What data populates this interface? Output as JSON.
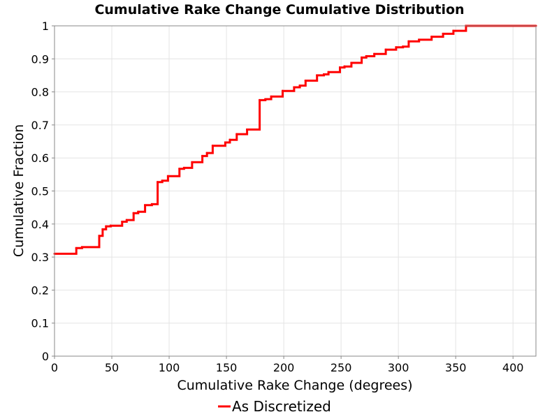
{
  "chart_data": {
    "type": "line",
    "title": "Cumulative Rake Change Cumulative Distribution",
    "xlabel": "Cumulative Rake Change (degrees)",
    "ylabel": "Cumulative Fraction",
    "xlim": [
      0,
      420
    ],
    "ylim": [
      0,
      1
    ],
    "x_ticks": [
      0,
      50,
      100,
      150,
      200,
      250,
      300,
      350,
      400
    ],
    "y_ticks": [
      0,
      0.1,
      0.2,
      0.3,
      0.4,
      0.5,
      0.6,
      0.7,
      0.8,
      0.9,
      1
    ],
    "x_tick_labels": [
      "0",
      "50",
      "100",
      "150",
      "200",
      "250",
      "300",
      "350",
      "400"
    ],
    "y_tick_labels": [
      "0",
      "0.1",
      "0.2",
      "0.3",
      "0.4",
      "0.5",
      "0.6",
      "0.7",
      "0.8",
      "0.9",
      "1"
    ],
    "grid": true,
    "legend_position": "bottom",
    "series": [
      {
        "name": "As Discretized",
        "color": "#ff0000",
        "step": true,
        "x": [
          0,
          19,
          24,
          39,
          42,
          45,
          49,
          59,
          63,
          69,
          73,
          79,
          85,
          90,
          94,
          99,
          109,
          113,
          120,
          129,
          133,
          138,
          149,
          153,
          159,
          168,
          179,
          184,
          189,
          199,
          209,
          214,
          219,
          229,
          235,
          239,
          249,
          253,
          259,
          268,
          272,
          279,
          289,
          298,
          304,
          309,
          318,
          329,
          339,
          348,
          359,
          420
        ],
        "y": [
          0.31,
          0.327,
          0.33,
          0.364,
          0.384,
          0.393,
          0.395,
          0.407,
          0.412,
          0.433,
          0.437,
          0.457,
          0.46,
          0.527,
          0.531,
          0.545,
          0.567,
          0.57,
          0.587,
          0.606,
          0.615,
          0.637,
          0.647,
          0.655,
          0.672,
          0.686,
          0.775,
          0.778,
          0.786,
          0.803,
          0.814,
          0.819,
          0.834,
          0.85,
          0.853,
          0.86,
          0.874,
          0.877,
          0.888,
          0.904,
          0.908,
          0.915,
          0.928,
          0.935,
          0.937,
          0.953,
          0.958,
          0.967,
          0.976,
          0.985,
          1.0,
          1.0
        ]
      }
    ]
  }
}
